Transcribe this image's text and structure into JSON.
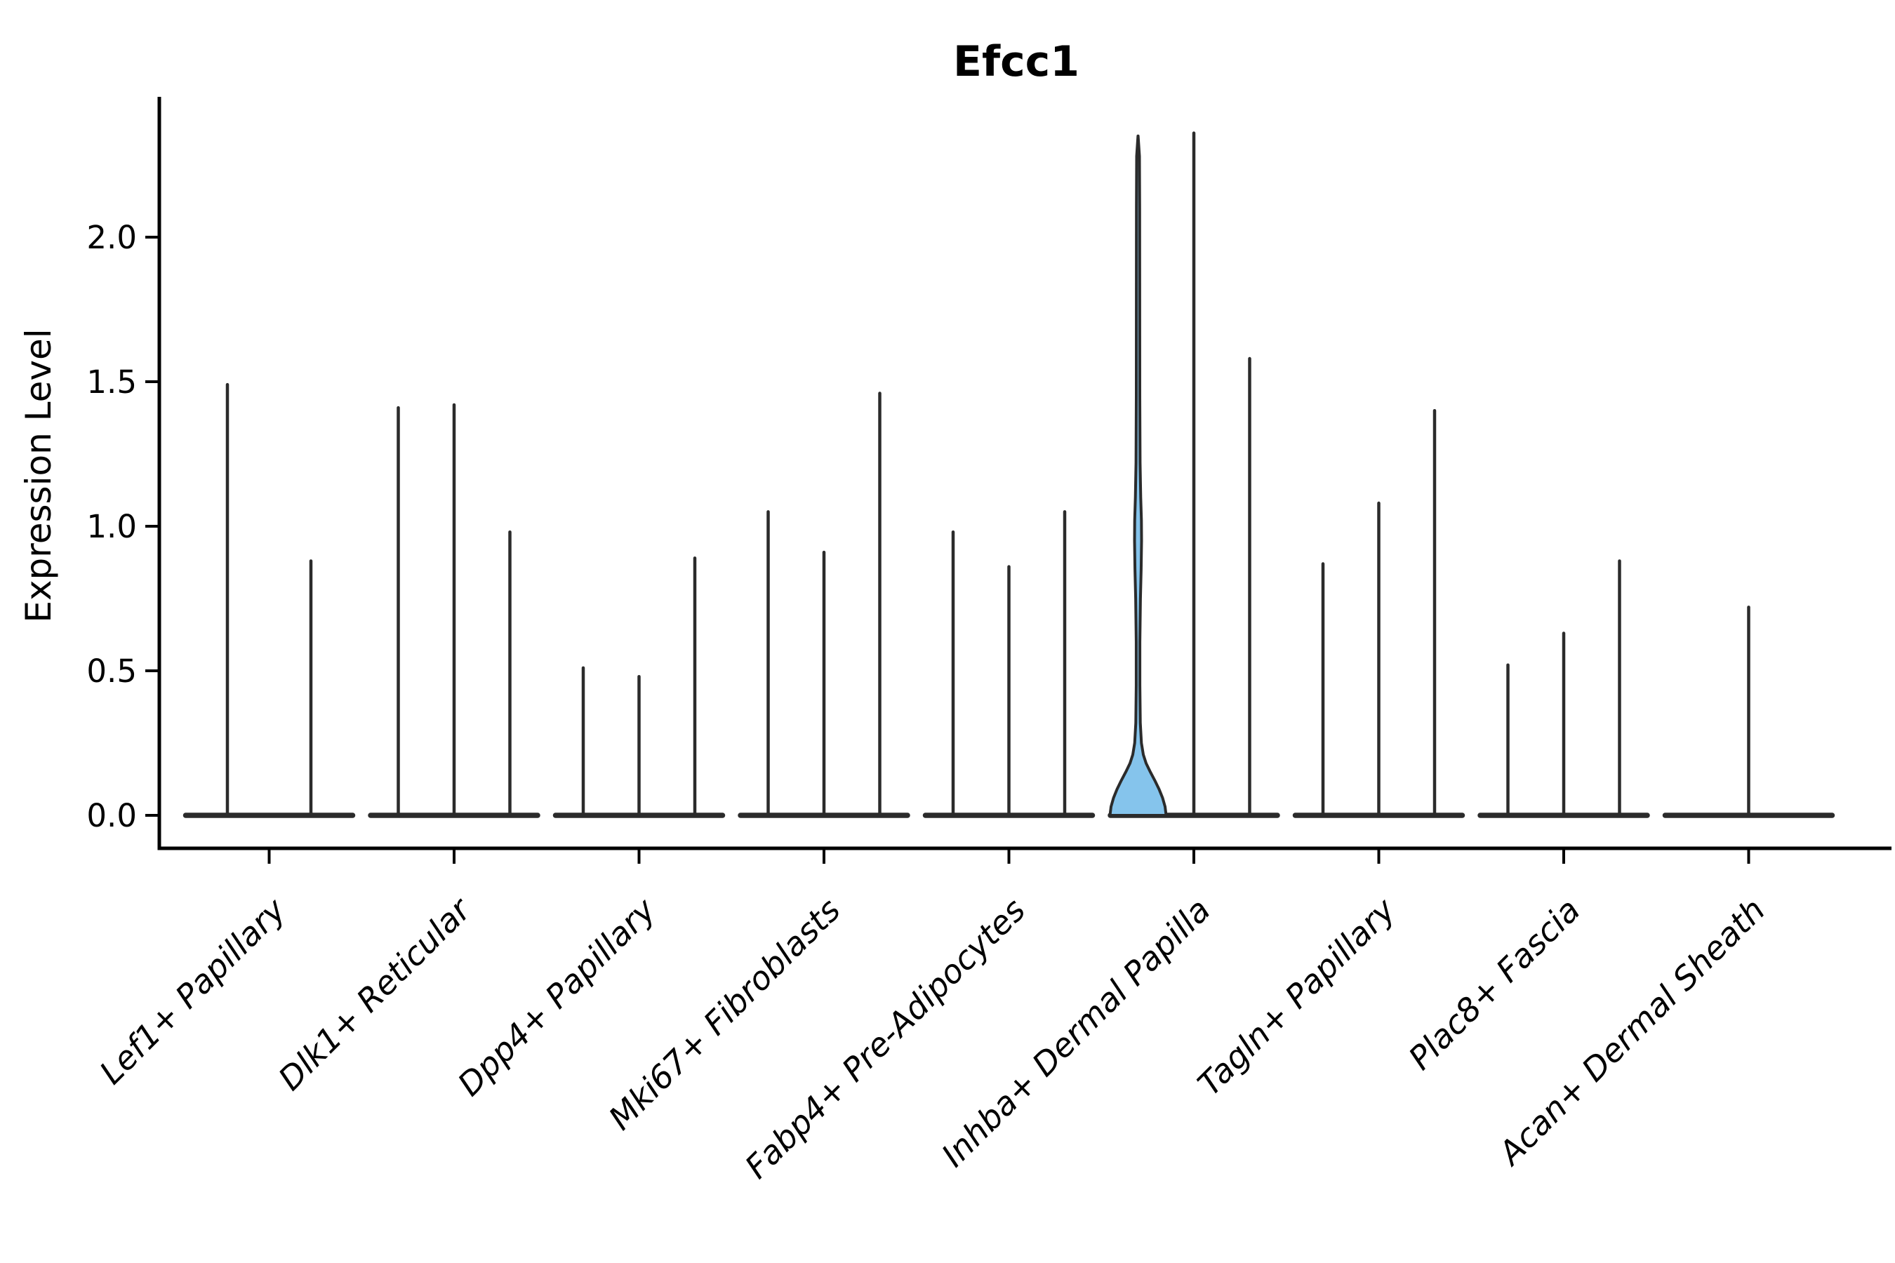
{
  "chart_data": {
    "type": "violin",
    "title": "Efcc1",
    "ylabel": "Expression Level",
    "xlabel": "",
    "yticks": [
      0.0,
      0.5,
      1.0,
      1.5,
      2.0
    ],
    "ylim": [
      -0.11,
      2.49
    ],
    "grid": false,
    "legend": "none",
    "categories": [
      "Lef1+ Papillary",
      "Dlk1+ Reticular",
      "Dpp4+ Papillary",
      "Mki67+ Fibroblasts",
      "Fabp4+ Pre-Adipocytes",
      "Inhba+ Dermal Papilla",
      "Tagln+ Papillary",
      "Plac8+ Fascia",
      "Acan+ Dermal Sheath"
    ],
    "groups": [
      {
        "category": "Lef1+ Papillary",
        "violins": [
          {
            "max": 1.49
          },
          {
            "max": 0.88
          }
        ]
      },
      {
        "category": "Dlk1+ Reticular",
        "violins": [
          {
            "max": 1.41
          },
          {
            "max": 1.42
          },
          {
            "max": 0.98
          }
        ]
      },
      {
        "category": "Dpp4+ Papillary",
        "violins": [
          {
            "max": 0.51
          },
          {
            "max": 0.48
          },
          {
            "max": 0.89
          }
        ]
      },
      {
        "category": "Mki67+ Fibroblasts",
        "violins": [
          {
            "max": 1.05
          },
          {
            "max": 0.91
          },
          {
            "max": 1.46
          }
        ]
      },
      {
        "category": "Fabp4+ Pre-Adipocytes",
        "violins": [
          {
            "max": 0.98
          },
          {
            "max": 0.86
          },
          {
            "max": 1.05
          }
        ]
      },
      {
        "category": "Inhba+ Dermal Papilla",
        "violins": [
          {
            "max": 2.35,
            "highlight": true
          },
          {
            "max": 2.36
          },
          {
            "max": 1.58
          }
        ]
      },
      {
        "category": "Tagln+ Papillary",
        "violins": [
          {
            "max": 0.87
          },
          {
            "max": 1.08
          },
          {
            "max": 1.4
          }
        ]
      },
      {
        "category": "Plac8+ Fascia",
        "violins": [
          {
            "max": 0.52
          },
          {
            "max": 0.63
          },
          {
            "max": 0.88
          }
        ]
      },
      {
        "category": "Acan+ Dermal Sheath",
        "violins": [
          {
            "max": 0.72
          }
        ]
      }
    ],
    "highlight": {
      "group": "Inhba+ Dermal Papilla",
      "fill": "#85C4EC",
      "profile": [
        [
          0.0,
          40.0
        ],
        [
          0.03,
          38.5
        ],
        [
          0.06,
          35.0
        ],
        [
          0.09,
          30.0
        ],
        [
          0.12,
          24.0
        ],
        [
          0.15,
          17.5
        ],
        [
          0.18,
          11.5
        ],
        [
          0.21,
          7.5
        ],
        [
          0.25,
          4.8
        ],
        [
          0.32,
          3.2
        ],
        [
          0.45,
          2.6
        ],
        [
          0.6,
          2.6
        ],
        [
          0.75,
          3.4
        ],
        [
          0.85,
          4.4
        ],
        [
          0.95,
          5.0
        ],
        [
          1.02,
          4.8
        ],
        [
          1.1,
          3.8
        ],
        [
          1.22,
          2.9
        ],
        [
          1.45,
          2.5
        ],
        [
          1.8,
          2.4
        ],
        [
          2.1,
          2.3
        ],
        [
          2.28,
          2.0
        ],
        [
          2.35,
          0.1
        ]
      ]
    },
    "colors": {
      "violin_line": "#2b2b2b",
      "spine": "#000000",
      "text": "#000000",
      "highlight_fill": "#85C4EC"
    }
  }
}
